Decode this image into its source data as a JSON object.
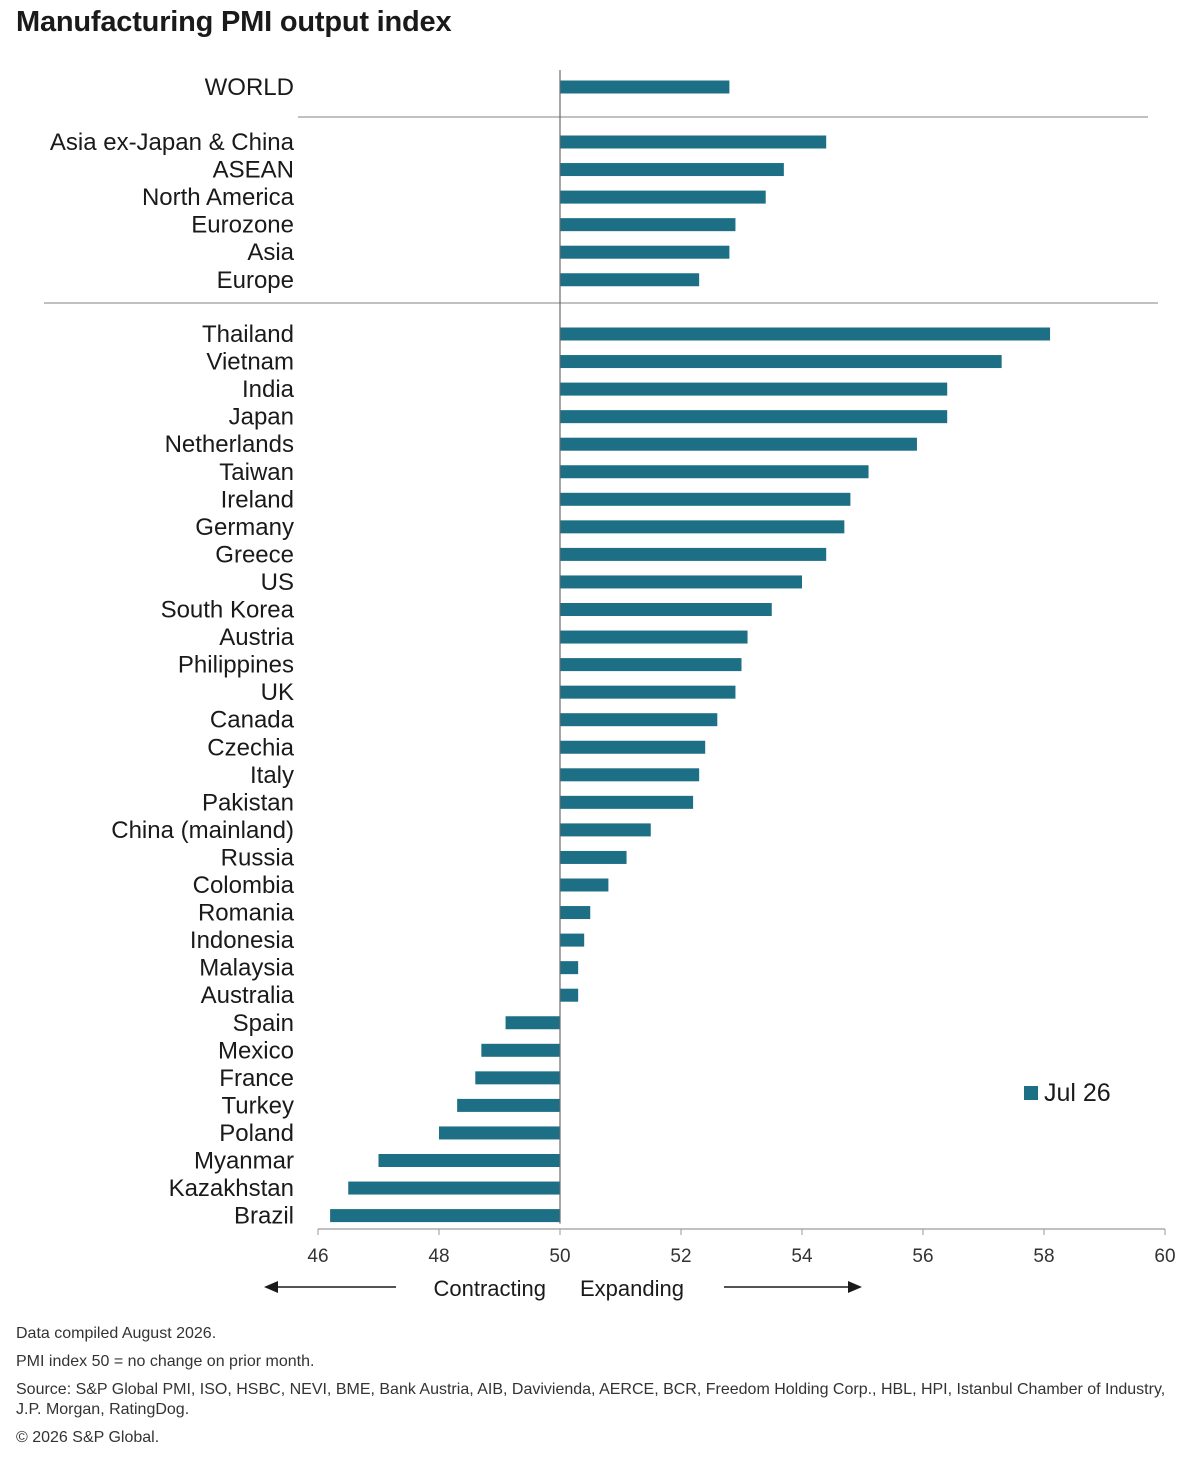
{
  "chart_data": {
    "type": "bar",
    "orientation": "horizontal",
    "title": "Manufacturing PMI output index",
    "baseline": 50,
    "xlim": [
      46,
      60
    ],
    "x_ticks": [
      46,
      48,
      50,
      52,
      54,
      56,
      58,
      60
    ],
    "direction_labels": {
      "left": "Contracting",
      "right": "Expanding"
    },
    "legend": {
      "label": "Jul 26",
      "placement": "bottom-right"
    },
    "bar_color": "#1d6f85",
    "groups": [
      {
        "categories": [
          "WORLD"
        ],
        "values": [
          52.8
        ]
      },
      {
        "categories": [
          "Asia ex-Japan & China",
          "ASEAN",
          "North America",
          "Eurozone",
          "Asia",
          "Europe"
        ],
        "values": [
          54.4,
          53.7,
          53.4,
          52.9,
          52.8,
          52.3
        ]
      },
      {
        "categories": [
          "Thailand",
          "Vietnam",
          "India",
          "Japan",
          "Netherlands",
          "Taiwan",
          "Ireland",
          "Germany",
          "Greece",
          "US",
          "South Korea",
          "Austria",
          "Philippines",
          "UK",
          "Canada",
          "Czechia",
          "Italy",
          "Pakistan",
          "China (mainland)",
          "Russia",
          "Colombia",
          "Romania",
          "Indonesia",
          "Malaysia",
          "Australia",
          "Spain",
          "Mexico",
          "France",
          "Turkey",
          "Poland",
          "Myanmar",
          "Kazakhstan",
          "Brazil"
        ],
        "values": [
          58.1,
          57.3,
          56.4,
          56.4,
          55.9,
          55.1,
          54.8,
          54.7,
          54.4,
          54.0,
          53.5,
          53.1,
          53.0,
          52.9,
          52.6,
          52.4,
          52.3,
          52.2,
          51.5,
          51.1,
          50.8,
          50.5,
          50.4,
          50.3,
          50.3,
          49.1,
          48.7,
          48.6,
          48.3,
          48.0,
          47.0,
          46.5,
          46.2
        ]
      }
    ]
  },
  "footer": {
    "compiled": "Data compiled August 2026.",
    "note": "PMI index 50 = no change on prior month.",
    "source": "Source: S&P Global PMI, ISO, HSBC, NEVI, BME, Bank Austria, AIB, Davivienda, AERCE, BCR, Freedom Holding Corp., HBL, HPI, Istanbul Chamber of Industry, J.P. Morgan, RatingDog.",
    "copyright": "© 2026 S&P Global."
  }
}
